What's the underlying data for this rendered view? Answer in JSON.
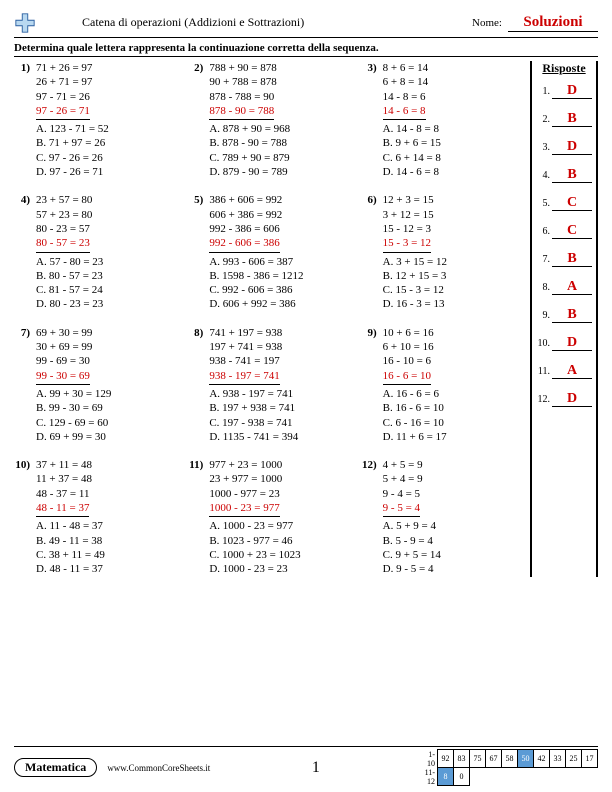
{
  "header": {
    "title": "Catena di operazioni (Addizioni e Sottrazioni)",
    "name_label": "Nome:",
    "name_value": "Soluzioni"
  },
  "instructions": "Determina quale lettera rappresenta la continuazione corretta della sequenza.",
  "answers_title": "Risposte",
  "problems": [
    {
      "n": "1)",
      "eqs": [
        "71 + 26 = 97",
        "26 + 71 = 97",
        "97 - 71 = 26"
      ],
      "red": "97 - 26 = 71",
      "opts": [
        "A. 123 - 71 = 52",
        "B. 71 + 97 = 26",
        "C. 97 - 26 = 26",
        "D. 97 - 26 = 71"
      ]
    },
    {
      "n": "2)",
      "eqs": [
        "788 + 90 = 878",
        "90 + 788 = 878",
        "878 - 788 = 90"
      ],
      "red": "878 - 90 = 788",
      "opts": [
        "A. 878 + 90 = 968",
        "B. 878 - 90 = 788",
        "C. 789 + 90 = 879",
        "D. 879 - 90 = 789"
      ]
    },
    {
      "n": "3)",
      "eqs": [
        "8 + 6 = 14",
        "6 + 8 = 14",
        "14 - 8 = 6"
      ],
      "red": "14 - 6 = 8",
      "opts": [
        "A. 14 - 8 = 8",
        "B. 9 + 6 = 15",
        "C. 6 + 14 = 8",
        "D. 14 - 6 = 8"
      ]
    },
    {
      "n": "4)",
      "eqs": [
        "23 + 57 = 80",
        "57 + 23 = 80",
        "80 - 23 = 57"
      ],
      "red": "80 - 57 = 23",
      "opts": [
        "A. 57 - 80 = 23",
        "B. 80 - 57 = 23",
        "C. 81 - 57 = 24",
        "D. 80 - 23 = 23"
      ]
    },
    {
      "n": "5)",
      "eqs": [
        "386 + 606 = 992",
        "606 + 386 = 992",
        "992 - 386 = 606"
      ],
      "red": "992 - 606 = 386",
      "opts": [
        "A. 993 - 606 = 387",
        "B. 1598 - 386 = 1212",
        "C. 992 - 606 = 386",
        "D. 606 + 992 = 386"
      ]
    },
    {
      "n": "6)",
      "eqs": [
        "12 + 3 = 15",
        "3 + 12 = 15",
        "15 - 12 = 3"
      ],
      "red": "15 - 3 = 12",
      "opts": [
        "A. 3 + 15 = 12",
        "B. 12 + 15 = 3",
        "C. 15 - 3 = 12",
        "D. 16 - 3 = 13"
      ]
    },
    {
      "n": "7)",
      "eqs": [
        "69 + 30 = 99",
        "30 + 69 = 99",
        "99 - 69 = 30"
      ],
      "red": "99 - 30 = 69",
      "opts": [
        "A. 99 + 30 = 129",
        "B. 99 - 30 = 69",
        "C. 129 - 69 = 60",
        "D. 69 + 99 = 30"
      ]
    },
    {
      "n": "8)",
      "eqs": [
        "741 + 197 = 938",
        "197 + 741 = 938",
        "938 - 741 = 197"
      ],
      "red": "938 - 197 = 741",
      "opts": [
        "A. 938 - 197 = 741",
        "B. 197 + 938 = 741",
        "C. 197 - 938 = 741",
        "D. 1135 - 741 = 394"
      ]
    },
    {
      "n": "9)",
      "eqs": [
        "10 + 6 = 16",
        "6 + 10 = 16",
        "16 - 10 = 6"
      ],
      "red": "16 - 6 = 10",
      "opts": [
        "A. 16 - 6 = 6",
        "B. 16 - 6 = 10",
        "C. 6 - 16 = 10",
        "D. 11 + 6 = 17"
      ]
    },
    {
      "n": "10)",
      "eqs": [
        "37 + 11 = 48",
        "11 + 37 = 48",
        "48 - 37 = 11"
      ],
      "red": "48 - 11 = 37",
      "opts": [
        "A. 11 - 48 = 37",
        "B. 49 - 11 = 38",
        "C. 38 + 11 = 49",
        "D. 48 - 11 = 37"
      ]
    },
    {
      "n": "11)",
      "eqs": [
        "977 + 23 = 1000",
        "23 + 977 = 1000",
        "1000 - 977 = 23"
      ],
      "red": "1000 - 23 = 977",
      "opts": [
        "A. 1000 - 23 = 977",
        "B. 1023 - 977 = 46",
        "C. 1000 + 23 = 1023",
        "D. 1000 - 23 = 23"
      ]
    },
    {
      "n": "12)",
      "eqs": [
        "4 + 5 = 9",
        "5 + 4 = 9",
        "9 - 4 = 5"
      ],
      "red": "9 - 5 = 4",
      "opts": [
        "A. 5 + 9 = 4",
        "B. 5 - 9 = 4",
        "C. 9 + 5 = 14",
        "D. 9 - 5 = 4"
      ]
    }
  ],
  "answers": [
    {
      "i": "1.",
      "v": "D"
    },
    {
      "i": "2.",
      "v": "B"
    },
    {
      "i": "3.",
      "v": "D"
    },
    {
      "i": "4.",
      "v": "B"
    },
    {
      "i": "5.",
      "v": "C"
    },
    {
      "i": "6.",
      "v": "C"
    },
    {
      "i": "7.",
      "v": "B"
    },
    {
      "i": "8.",
      "v": "A"
    },
    {
      "i": "9.",
      "v": "B"
    },
    {
      "i": "10.",
      "v": "D"
    },
    {
      "i": "11.",
      "v": "A"
    },
    {
      "i": "12.",
      "v": "D"
    }
  ],
  "footer": {
    "subject": "Matematica",
    "site": "www.CommonCoreSheets.it",
    "page": "1",
    "score": {
      "rows": [
        {
          "lbl": "1-10",
          "cells": [
            "92",
            "83",
            "75",
            "67",
            "58",
            "50",
            "42",
            "33",
            "25",
            "17"
          ],
          "hl": [
            5
          ]
        },
        {
          "lbl": "11-12",
          "cells": [
            "8",
            "0"
          ],
          "hl": [
            0
          ]
        }
      ]
    }
  }
}
